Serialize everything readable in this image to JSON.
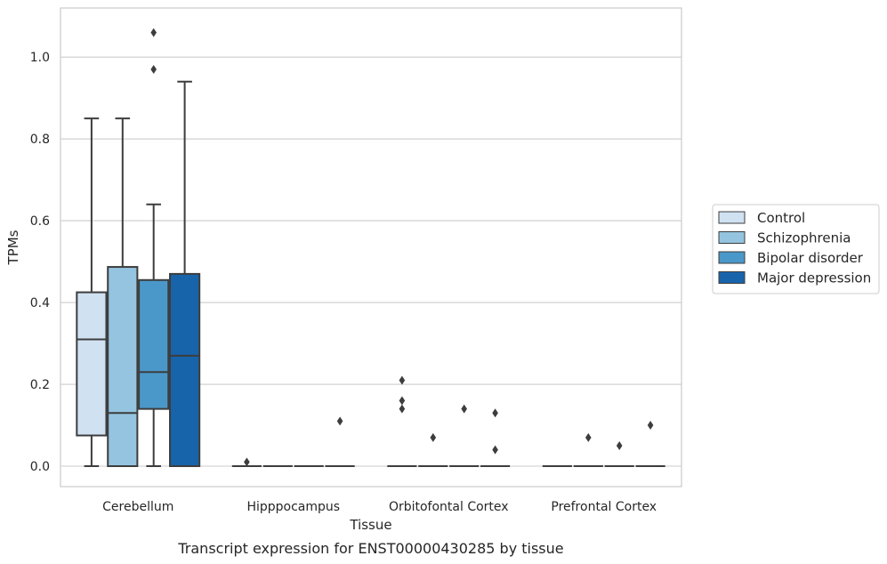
{
  "chart_data": {
    "type": "box",
    "caption": "Transcript expression for ENST00000430285 by tissue",
    "xlabel": "Tissue",
    "ylabel": "TPMs",
    "ylim": [
      -0.05,
      1.12
    ],
    "yticks": [
      0.0,
      0.2,
      0.4,
      0.6,
      0.8,
      1.0
    ],
    "ytick_labels": [
      "0.0",
      "0.2",
      "0.4",
      "0.6",
      "0.8",
      "1.0"
    ],
    "grid": "horizontal",
    "legend_position": "right",
    "categories": [
      "Cerebellum",
      "Hipppocampus",
      "Orbitofontal Cortex",
      "Prefrontal Cortex"
    ],
    "series": [
      {
        "name": "Control",
        "color": "#d0e1f2",
        "boxes": [
          {
            "whislo": 0.0,
            "q1": 0.075,
            "med": 0.31,
            "q3": 0.425,
            "whishi": 0.85,
            "fliers": []
          },
          {
            "whislo": 0.0,
            "q1": 0.0,
            "med": 0.0,
            "q3": 0.0,
            "whishi": 0.0,
            "fliers": [
              0.01
            ]
          },
          {
            "whislo": 0.0,
            "q1": 0.0,
            "med": 0.0,
            "q3": 0.0,
            "whishi": 0.0,
            "fliers": [
              0.21,
              0.16,
              0.14
            ]
          },
          {
            "whislo": 0.0,
            "q1": 0.0,
            "med": 0.0,
            "q3": 0.0,
            "whishi": 0.0,
            "fliers": []
          }
        ]
      },
      {
        "name": "Schizophrenia",
        "color": "#94c4df",
        "boxes": [
          {
            "whislo": 0.0,
            "q1": 0.0,
            "med": 0.13,
            "q3": 0.487,
            "whishi": 0.85,
            "fliers": []
          },
          {
            "whislo": 0.0,
            "q1": 0.0,
            "med": 0.0,
            "q3": 0.0,
            "whishi": 0.0,
            "fliers": []
          },
          {
            "whislo": 0.0,
            "q1": 0.0,
            "med": 0.0,
            "q3": 0.0,
            "whishi": 0.0,
            "fliers": [
              0.07
            ]
          },
          {
            "whislo": 0.0,
            "q1": 0.0,
            "med": 0.0,
            "q3": 0.0,
            "whishi": 0.0,
            "fliers": [
              0.07
            ]
          }
        ]
      },
      {
        "name": "Bipolar disorder",
        "color": "#4a98c9",
        "boxes": [
          {
            "whislo": 0.0,
            "q1": 0.14,
            "med": 0.23,
            "q3": 0.455,
            "whishi": 0.64,
            "fliers": [
              1.06,
              0.97
            ]
          },
          {
            "whislo": 0.0,
            "q1": 0.0,
            "med": 0.0,
            "q3": 0.0,
            "whishi": 0.0,
            "fliers": []
          },
          {
            "whislo": 0.0,
            "q1": 0.0,
            "med": 0.0,
            "q3": 0.0,
            "whishi": 0.0,
            "fliers": [
              0.14
            ]
          },
          {
            "whislo": 0.0,
            "q1": 0.0,
            "med": 0.0,
            "q3": 0.0,
            "whishi": 0.0,
            "fliers": [
              0.05
            ]
          }
        ]
      },
      {
        "name": "Major depression",
        "color": "#1764ab",
        "boxes": [
          {
            "whislo": 0.0,
            "q1": 0.0,
            "med": 0.27,
            "q3": 0.47,
            "whishi": 0.94,
            "fliers": []
          },
          {
            "whislo": 0.0,
            "q1": 0.0,
            "med": 0.0,
            "q3": 0.0,
            "whishi": 0.0,
            "fliers": [
              0.11
            ]
          },
          {
            "whislo": 0.0,
            "q1": 0.0,
            "med": 0.0,
            "q3": 0.0,
            "whishi": 0.0,
            "fliers": [
              0.13,
              0.04
            ]
          },
          {
            "whislo": 0.0,
            "q1": 0.0,
            "med": 0.0,
            "q3": 0.0,
            "whishi": 0.0,
            "fliers": [
              0.1
            ]
          }
        ]
      }
    ]
  }
}
